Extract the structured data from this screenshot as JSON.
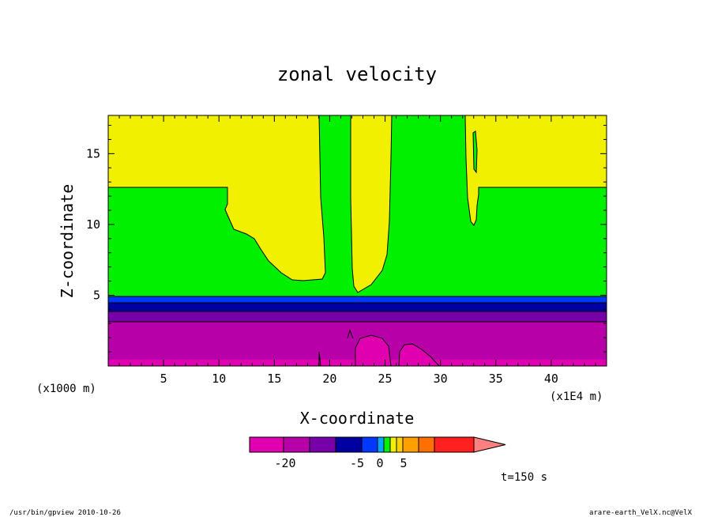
{
  "chart_data": {
    "type": "heatmap",
    "title": "zonal velocity",
    "xlabel": "X-coordinate",
    "ylabel": "Z-coordinate",
    "x_scale_label": "(x1E4 m)",
    "y_scale_label": "(x1000 m)",
    "xlim": [
      0,
      45
    ],
    "ylim": [
      0,
      17.7
    ],
    "x_ticks": [
      "5",
      "10",
      "15",
      "20",
      "25",
      "30",
      "35",
      "40"
    ],
    "x_tick_values": [
      5,
      10,
      15,
      20,
      25,
      30,
      35,
      40
    ],
    "y_ticks": [
      "5",
      "10",
      "15"
    ],
    "y_tick_values": [
      5,
      10,
      15
    ],
    "colorbar": {
      "tick_labels": [
        "-20",
        "-5",
        "0",
        "5"
      ],
      "tick_values": [
        -20,
        -5,
        0,
        5
      ],
      "colors": [
        "#e000b0",
        "#b800a8",
        "#7800a8",
        "#0000a0",
        "#0038ff",
        "#00a8ff",
        "#00f000",
        "#f0f000",
        "#ffd000",
        "#ffa000",
        "#ff7000",
        "#ff2020",
        "#ff8080"
      ]
    },
    "regions": [
      {
        "level": "#e000b0",
        "description": "strong negative core"
      },
      {
        "level": "#b800a8",
        "z_range": [
          0,
          3.3
        ]
      },
      {
        "level": "#7800a8",
        "z_range": [
          3.3,
          3.9
        ]
      },
      {
        "level": "#0000a0",
        "z_range": [
          3.9,
          4.5
        ]
      },
      {
        "level": "#0038ff",
        "z_range": [
          4.5,
          4.95
        ]
      },
      {
        "level": "#00f000",
        "z_range": [
          4.95,
          12.7
        ]
      },
      {
        "level": "#f0f000",
        "z_range": [
          12.7,
          17.7
        ]
      }
    ],
    "time_label": "t=150 s"
  },
  "footer": {
    "left": "/usr/bin/gpview  2010-10-26",
    "right": "arare-earth_VelX.nc@VelX"
  },
  "colors": {
    "yellow": "#f0f000",
    "green": "#00f000",
    "purple": "#b800a8",
    "magenta": "#e000b0",
    "violet": "#7800a8",
    "navy": "#0000a0",
    "blue": "#0038ff"
  }
}
